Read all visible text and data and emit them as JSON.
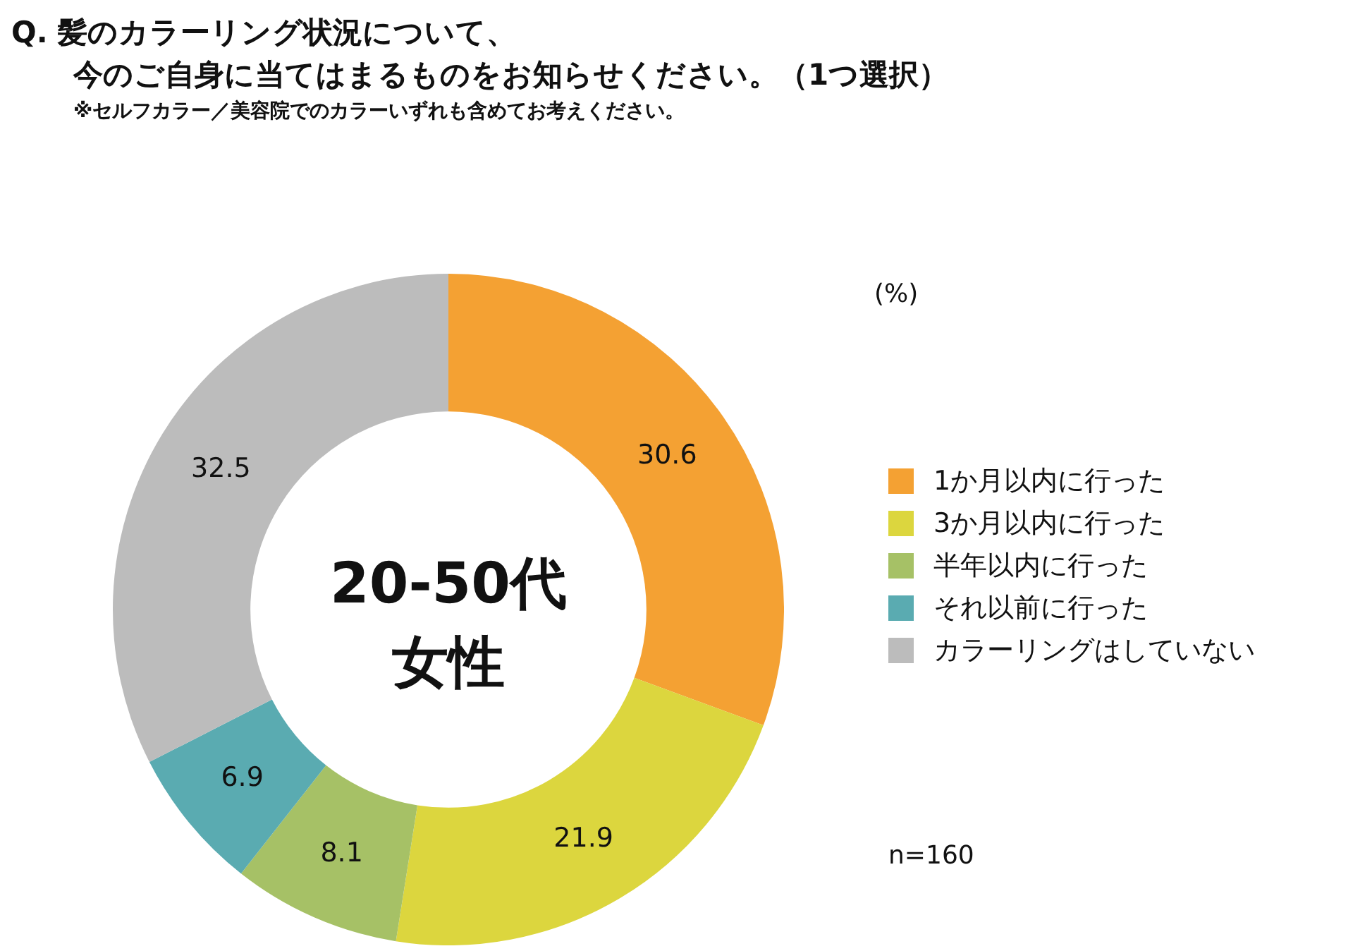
{
  "chart_data": {
    "type": "donut",
    "title": "Q. 髪のカラーリング状況について、今のご自身に当てはまるものをお知らせください。（1つ選択）",
    "subtitle": "※セルフカラー／美容院でのカラーいずれも含めてお考えください。",
    "categories": [
      "1か月以内に行った",
      "3か月以内に行った",
      "半年以内に行った",
      "それ以前に行った",
      "カラーリングはしていない"
    ],
    "values": [
      30.6,
      21.9,
      8.1,
      6.9,
      32.5
    ],
    "colors": [
      "#f4a133",
      "#dcd63e",
      "#a6c166",
      "#5aabb1",
      "#bcbcbc"
    ],
    "data_labels": true,
    "legend": "right",
    "annotations": [
      "20-50代女性",
      "(%)",
      "n=160"
    ]
  }
}
